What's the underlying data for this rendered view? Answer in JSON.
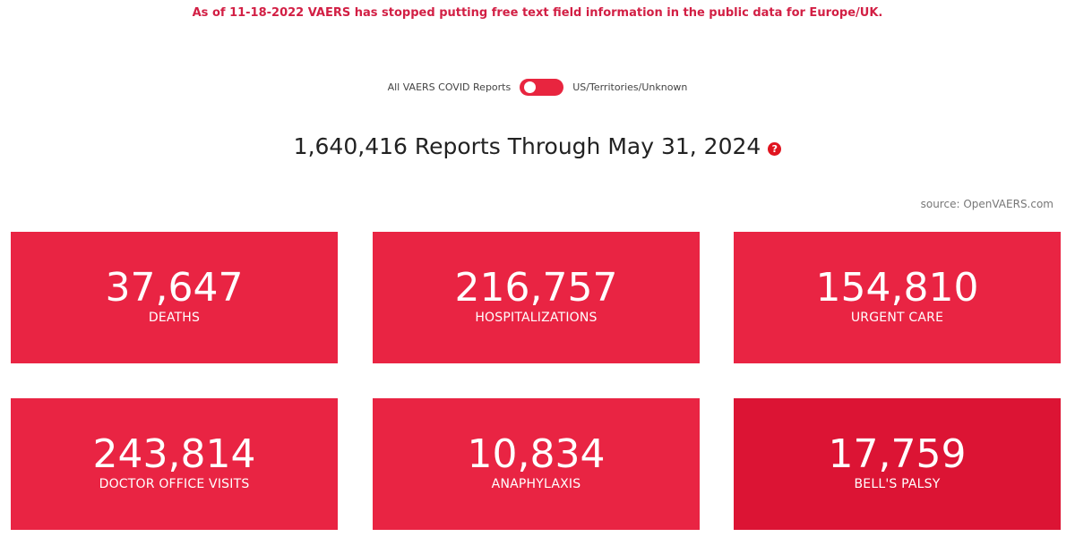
{
  "notice": "As of 11-18-2022 VAERS has stopped putting free text field information in the public data for Europe/UK.",
  "toggle": {
    "left_label": "All VAERS COVID Reports",
    "right_label": "US/Territories/Unknown",
    "state": "left",
    "color": "#e8253f"
  },
  "headline": {
    "text": "1,640,416 Reports Through May 31, 2024",
    "help_icon": "?"
  },
  "source": "source: OpenVAERS.com",
  "colors": {
    "card": "#e92443",
    "card_hover": "#dc1434",
    "notice": "#d21f44"
  },
  "cards": [
    {
      "value": "37,647",
      "label": "DEATHS"
    },
    {
      "value": "216,757",
      "label": "HOSPITALIZATIONS"
    },
    {
      "value": "154,810",
      "label": "URGENT CARE"
    },
    {
      "value": "243,814",
      "label": "DOCTOR OFFICE VISITS"
    },
    {
      "value": "10,834",
      "label": "ANAPHYLAXIS"
    },
    {
      "value": "17,759",
      "label": "BELL'S PALSY"
    }
  ]
}
